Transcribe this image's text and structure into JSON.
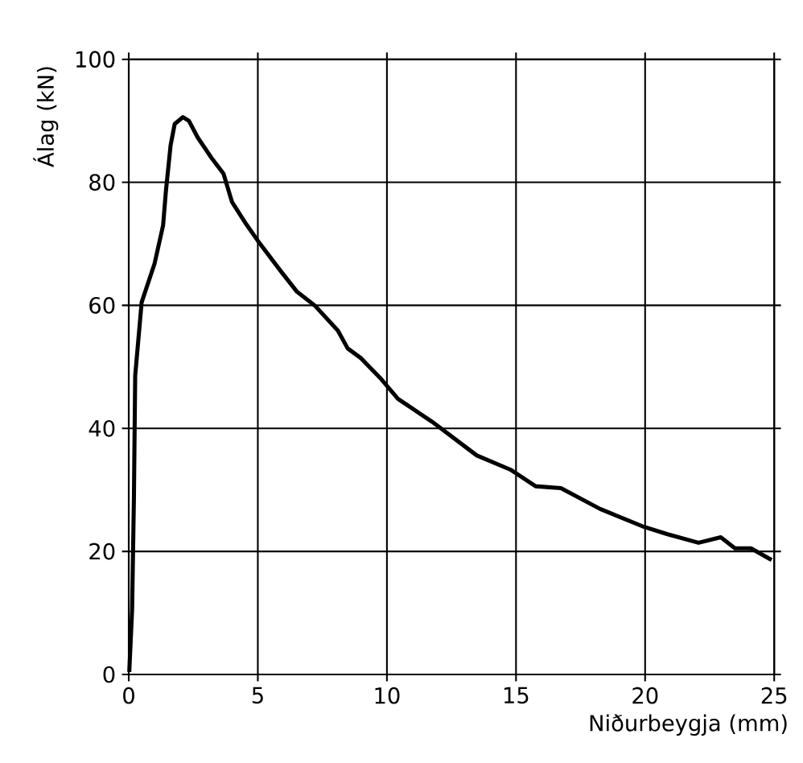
{
  "chart_data": {
    "type": "line",
    "xlabel": "Niðurbeygja (mm)",
    "ylabel": "Álag (kN)",
    "xlim": [
      0,
      25
    ],
    "ylim": [
      0,
      100
    ],
    "xticks": [
      0,
      5,
      10,
      15,
      20,
      25
    ],
    "yticks": [
      0,
      20,
      40,
      60,
      80,
      100
    ],
    "grid": true,
    "series": [
      {
        "color": "#000000",
        "x": [
          0.02,
          0.13,
          0.2,
          0.25,
          0.5,
          1.0,
          1.33,
          1.44,
          1.62,
          1.78,
          2.1,
          2.33,
          2.67,
          3.2,
          3.67,
          4.0,
          4.55,
          5.0,
          5.9,
          6.52,
          7.2,
          8.1,
          8.48,
          9.0,
          9.78,
          10.43,
          11.74,
          13.48,
          14.78,
          15.76,
          16.74,
          18.26,
          19.89,
          20.87,
          22.07,
          22.93,
          23.48,
          24.1,
          24.9
        ],
        "values": [
          0.4,
          10.5,
          28.6,
          48.6,
          60.5,
          66.8,
          73,
          78.6,
          86,
          89.5,
          90.6,
          90,
          87.3,
          84,
          81.4,
          76.8,
          73.2,
          70.5,
          65.5,
          62.2,
          60,
          55.9,
          53,
          51.4,
          48,
          44.8,
          41.1,
          35.6,
          33.3,
          30.6,
          30.3,
          26.9,
          24.1,
          22.8,
          21.4,
          22.3,
          20.5,
          20.5,
          18.6
        ]
      }
    ]
  }
}
